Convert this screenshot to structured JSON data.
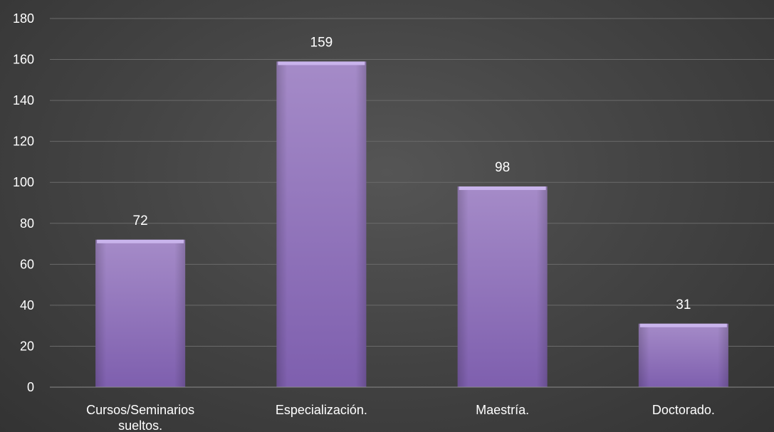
{
  "chart_data": {
    "type": "bar",
    "categories": [
      [
        "Cursos/Seminarios",
        "sueltos."
      ],
      [
        "Especialización."
      ],
      [
        "Maestría."
      ],
      [
        "Doctorado."
      ]
    ],
    "values": [
      72,
      159,
      98,
      31
    ],
    "data_labels": [
      "72",
      "159",
      "98",
      "31"
    ],
    "title": "",
    "xlabel": "",
    "ylabel": "",
    "ylim": [
      0,
      180
    ],
    "yticks": [
      0,
      20,
      40,
      60,
      80,
      100,
      120,
      140,
      160,
      180
    ],
    "grid": true,
    "legend": "none",
    "bar_color_top": "#a58bc8",
    "bar_color_bottom": "#7e5fae",
    "bar_highlight": "#c9b4ec"
  }
}
